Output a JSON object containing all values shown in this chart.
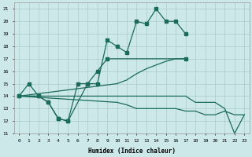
{
  "xlabel": "Humidex (Indice chaleur)",
  "bg_color": "#cce8e8",
  "grid_color": "#aacccc",
  "line_color": "#1a6b5a",
  "xlim": [
    -0.5,
    23.5
  ],
  "ylim": [
    11,
    21.5
  ],
  "yticks": [
    11,
    12,
    13,
    14,
    15,
    16,
    17,
    18,
    19,
    20,
    21
  ],
  "xticks": [
    0,
    1,
    2,
    3,
    4,
    5,
    6,
    7,
    8,
    9,
    10,
    11,
    12,
    13,
    14,
    15,
    16,
    17,
    18,
    19,
    20,
    21,
    22,
    23
  ],
  "lines": [
    {
      "x": [
        0,
        1,
        2,
        3,
        4,
        5,
        6,
        7,
        8,
        9,
        10,
        11,
        12,
        13,
        14,
        15,
        16,
        17
      ],
      "y": [
        14,
        15,
        14,
        13.5,
        12.2,
        12,
        15,
        15,
        15,
        18.5,
        18,
        17.5,
        20,
        19.8,
        21,
        20,
        20,
        19
      ],
      "marker": true
    },
    {
      "x": [
        0,
        2,
        3,
        4,
        5,
        7,
        8,
        9,
        17
      ],
      "y": [
        14,
        14,
        13.5,
        12.2,
        12,
        15,
        16,
        17,
        17
      ],
      "marker": true
    },
    {
      "x": [
        0,
        10,
        11,
        12,
        13,
        14,
        15,
        16,
        17
      ],
      "y": [
        14,
        15,
        15.3,
        15.8,
        16.2,
        16.5,
        16.8,
        17,
        17
      ],
      "marker": false
    },
    {
      "x": [
        0,
        10,
        11,
        12,
        13,
        14,
        15,
        16,
        17,
        18,
        19,
        20,
        21,
        22,
        23
      ],
      "y": [
        14,
        14,
        14,
        14,
        14,
        14,
        14,
        14,
        14,
        13.5,
        13.5,
        13.5,
        13,
        11,
        12.5
      ],
      "marker": false
    },
    {
      "x": [
        0,
        10,
        11,
        12,
        13,
        14,
        15,
        16,
        17,
        18,
        19,
        20,
        21,
        22,
        23
      ],
      "y": [
        14,
        13.5,
        13.3,
        13.0,
        13,
        13,
        13,
        13,
        12.8,
        12.8,
        12.5,
        12.5,
        12.8,
        12.5,
        12.5
      ],
      "marker": false
    }
  ]
}
